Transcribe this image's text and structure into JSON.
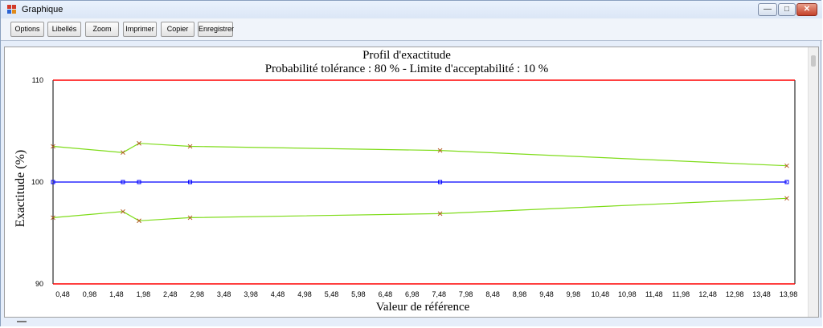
{
  "window": {
    "title": "Graphique",
    "controls": {
      "minimize": "—",
      "maximize": "□",
      "close": "✕"
    }
  },
  "toolbar": {
    "buttons": [
      "Options",
      "Libellés",
      "Zoom",
      "Imprimer",
      "Copier",
      "Enregistrer"
    ]
  },
  "chart_data": {
    "type": "line",
    "title": "Profil d'exactitude",
    "subtitle": "Probabilité tolérance : 80 % - Limite d'acceptabilité : 10 %",
    "xlabel": "Valeur de référence",
    "ylabel": "Exactitude (%)",
    "ylim": [
      90,
      110
    ],
    "xlim": [
      0.3,
      14.1
    ],
    "y_ticks": [
      "110",
      "100",
      "90"
    ],
    "x_ticks": [
      "0,48",
      "0,98",
      "1,48",
      "1,98",
      "2,48",
      "2,98",
      "3,48",
      "3,98",
      "4,48",
      "4,98",
      "5,48",
      "5,98",
      "6,48",
      "6,98",
      "7,48",
      "7,98",
      "8,48",
      "8,98",
      "9,48",
      "9,98",
      "10,48",
      "10,98",
      "11,48",
      "11,98",
      "12,48",
      "12,98",
      "13,48",
      "13,98"
    ],
    "x_tick_values": [
      0.48,
      0.98,
      1.48,
      1.98,
      2.48,
      2.98,
      3.48,
      3.98,
      4.48,
      4.98,
      5.48,
      5.98,
      6.48,
      6.98,
      7.48,
      7.98,
      8.48,
      8.98,
      9.48,
      9.98,
      10.48,
      10.98,
      11.48,
      11.98,
      12.48,
      12.98,
      13.48,
      13.98
    ],
    "grid": false,
    "series": [
      {
        "role": "upper",
        "color": "#7fdc1a",
        "marker": "x",
        "x": [
          0.3,
          1.6,
          1.9,
          2.85,
          7.5,
          13.95
        ],
        "y": [
          103.5,
          102.9,
          103.8,
          103.5,
          103.1,
          101.6
        ]
      },
      {
        "role": "center",
        "color": "#0000ff",
        "marker": "square",
        "x": [
          0.3,
          1.6,
          1.9,
          2.85,
          7.5,
          13.95
        ],
        "y": [
          100,
          100,
          100,
          100,
          100,
          100
        ]
      },
      {
        "role": "lower",
        "color": "#7fdc1a",
        "marker": "x",
        "x": [
          0.3,
          1.6,
          1.9,
          2.85,
          7.5,
          13.95
        ],
        "y": [
          96.5,
          97.1,
          96.2,
          96.5,
          96.9,
          98.4
        ]
      },
      {
        "role": "limit-upper",
        "color": "#ff0000",
        "marker": "none",
        "x": [
          0.3,
          14.1
        ],
        "y": [
          110,
          110
        ]
      },
      {
        "role": "limit-lower",
        "color": "#ff0000",
        "marker": "none",
        "x": [
          0.3,
          14.1
        ],
        "y": [
          90,
          90
        ]
      }
    ]
  }
}
